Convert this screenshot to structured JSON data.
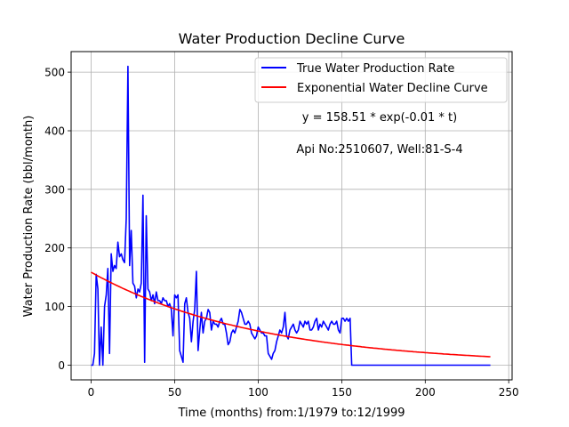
{
  "chart_data": {
    "type": "line",
    "title": "Water Production Decline Curve",
    "xlabel": "Time (months) from:1/1979 to:12/1999",
    "ylabel": "Water Production Rate (bbl/month)",
    "xlim": [
      -12,
      252
    ],
    "ylim": [
      -25,
      535
    ],
    "xticks": [
      0,
      50,
      100,
      150,
      200,
      250
    ],
    "yticks": [
      0,
      100,
      200,
      300,
      400,
      500
    ],
    "grid": true,
    "legend_position": "top-right",
    "series": [
      {
        "name": "True Water Production Rate",
        "color": "#0000ff",
        "x": [
          0,
          1,
          2,
          3,
          4,
          5,
          6,
          7,
          8,
          9,
          10,
          11,
          12,
          13,
          14,
          15,
          16,
          17,
          18,
          19,
          20,
          21,
          22,
          23,
          24,
          25,
          26,
          27,
          28,
          29,
          30,
          31,
          32,
          33,
          34,
          35,
          36,
          37,
          38,
          39,
          40,
          41,
          42,
          43,
          44,
          45,
          46,
          47,
          48,
          49,
          50,
          51,
          52,
          53,
          54,
          55,
          56,
          57,
          58,
          59,
          60,
          61,
          62,
          63,
          64,
          65,
          66,
          67,
          68,
          69,
          70,
          71,
          72,
          73,
          74,
          75,
          76,
          77,
          78,
          79,
          80,
          81,
          82,
          83,
          84,
          85,
          86,
          87,
          88,
          89,
          90,
          91,
          92,
          93,
          94,
          95,
          96,
          97,
          98,
          99,
          100,
          101,
          102,
          103,
          104,
          105,
          106,
          107,
          108,
          109,
          110,
          111,
          112,
          113,
          114,
          115,
          116,
          117,
          118,
          119,
          120,
          121,
          122,
          123,
          124,
          125,
          126,
          127,
          128,
          129,
          130,
          131,
          132,
          133,
          134,
          135,
          136,
          137,
          138,
          139,
          140,
          141,
          142,
          143,
          144,
          145,
          146,
          147,
          148,
          149,
          150,
          151,
          152,
          153,
          154,
          155,
          156,
          157,
          160,
          180,
          200,
          220,
          239
        ],
        "y": [
          0,
          0,
          20,
          155,
          130,
          0,
          65,
          0,
          100,
          120,
          165,
          20,
          190,
          160,
          170,
          165,
          210,
          185,
          190,
          180,
          175,
          250,
          510,
          170,
          230,
          140,
          135,
          115,
          130,
          125,
          140,
          290,
          5,
          255,
          130,
          125,
          110,
          120,
          105,
          125,
          110,
          110,
          105,
          115,
          110,
          110,
          100,
          105,
          95,
          50,
          120,
          115,
          120,
          25,
          15,
          5,
          105,
          115,
          90,
          80,
          40,
          75,
          95,
          160,
          25,
          60,
          90,
          55,
          75,
          80,
          95,
          90,
          60,
          75,
          70,
          70,
          65,
          75,
          80,
          70,
          70,
          55,
          35,
          40,
          55,
          60,
          55,
          65,
          75,
          95,
          90,
          80,
          70,
          70,
          75,
          70,
          55,
          50,
          45,
          50,
          65,
          60,
          55,
          55,
          50,
          50,
          20,
          15,
          10,
          20,
          25,
          40,
          50,
          60,
          55,
          65,
          90,
          50,
          45,
          60,
          65,
          70,
          60,
          55,
          60,
          75,
          70,
          65,
          75,
          70,
          75,
          60,
          60,
          65,
          75,
          80,
          60,
          70,
          65,
          75,
          70,
          65,
          60,
          70,
          75,
          70,
          70,
          75,
          60,
          55,
          80,
          80,
          75,
          80,
          75,
          80,
          0,
          0,
          0,
          0,
          0,
          0,
          0
        ]
      },
      {
        "name": "Exponential Water Decline Curve",
        "color": "#ff0000",
        "equation": {
          "a": 158.51,
          "b": -0.01
        },
        "x_range": [
          0,
          239
        ]
      }
    ],
    "annotations": [
      "y = 158.51 * exp(-0.01 * t)",
      "Api No:2510607, Well:81-S-4"
    ]
  }
}
